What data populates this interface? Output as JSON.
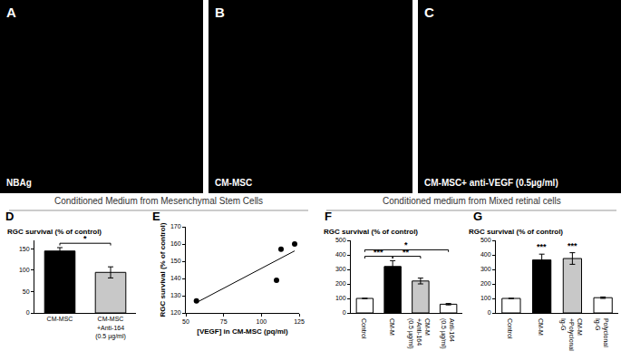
{
  "images": [
    {
      "label": "A",
      "caption": "NBAg"
    },
    {
      "label": "B",
      "caption": "CM-MSC"
    },
    {
      "label": "C",
      "caption": "CM-MSC+ anti-VEGF (0.5µg/ml)"
    }
  ],
  "sections": [
    {
      "text": "Conditioned Medium from Mesenchymal Stem Cells"
    },
    {
      "text": "Conditioned medium from Mixed retinal cells"
    }
  ],
  "chart_data": [
    {
      "type": "bar",
      "panel_label": "D",
      "title": "RGC survival (% of control)",
      "categories": [
        "CM-MSC",
        "CM-MSC\n+Anti-164\n(0.5 µg/ml)"
      ],
      "values": [
        145,
        95
      ],
      "errors": [
        8,
        13
      ],
      "colors": [
        "#000000",
        "#c8c8c8"
      ],
      "ylim": [
        0,
        170
      ],
      "yticks": [
        0,
        50,
        100,
        150
      ],
      "significance": [
        {
          "text": "*",
          "categories": [
            0,
            1
          ]
        }
      ]
    },
    {
      "type": "scatter",
      "panel_label": "E",
      "x": [
        57,
        110,
        113,
        122
      ],
      "values": [
        127,
        139,
        157,
        160
      ],
      "color": "#000000",
      "xlim": [
        50,
        125
      ],
      "xticks": [
        50,
        75,
        100,
        125
      ],
      "ylim": [
        120,
        170
      ],
      "yticks": [
        120,
        130,
        140,
        150,
        160,
        170
      ],
      "xlabel": "[VEGF] in CM-MSC (pq/ml)",
      "ylabel": "RGC survival (% of control)",
      "fit_line": {
        "x": [
          57,
          122
        ],
        "values": [
          126,
          156
        ]
      }
    },
    {
      "type": "bar",
      "panel_label": "F",
      "title": "RGC survival (% of control)",
      "categories": [
        "Control",
        "CM-M",
        "CM-M\n+Anti-164\n(0.5 µg/ml)",
        "Anti-164\n(0.5 µg/ml)"
      ],
      "values": [
        100,
        320,
        220,
        60
      ],
      "errors": [
        0,
        40,
        20,
        5
      ],
      "colors": [
        "#ffffff",
        "#000000",
        "#c8c8c8",
        "#808080"
      ],
      "ylim": [
        0,
        500
      ],
      "yticks": [
        0,
        100,
        200,
        300,
        400,
        500
      ],
      "significance": [
        {
          "text": "***",
          "categories": [
            0,
            1
          ]
        },
        {
          "text": "**",
          "categories": [
            1,
            2
          ]
        },
        {
          "text": "*",
          "categories": [
            0,
            3
          ]
        }
      ]
    },
    {
      "type": "bar",
      "panel_label": "G",
      "title": "RGC survival (% of control)",
      "categories": [
        "Control",
        "CM-M",
        "CM-M\n+Polyclonal\nIg-G",
        "Polyclonal\nIg-G"
      ],
      "values": [
        100,
        365,
        375,
        105
      ],
      "errors": [
        0,
        40,
        40,
        5
      ],
      "colors": [
        "#ffffff",
        "#000000",
        "#c8c8c8",
        "#808080"
      ],
      "ylim": [
        0,
        500
      ],
      "yticks": [
        0,
        100,
        200,
        300,
        400,
        500
      ],
      "significance": [
        {
          "text": "***",
          "categories": [
            1
          ]
        },
        {
          "text": "***",
          "categories": [
            2
          ]
        }
      ]
    }
  ]
}
